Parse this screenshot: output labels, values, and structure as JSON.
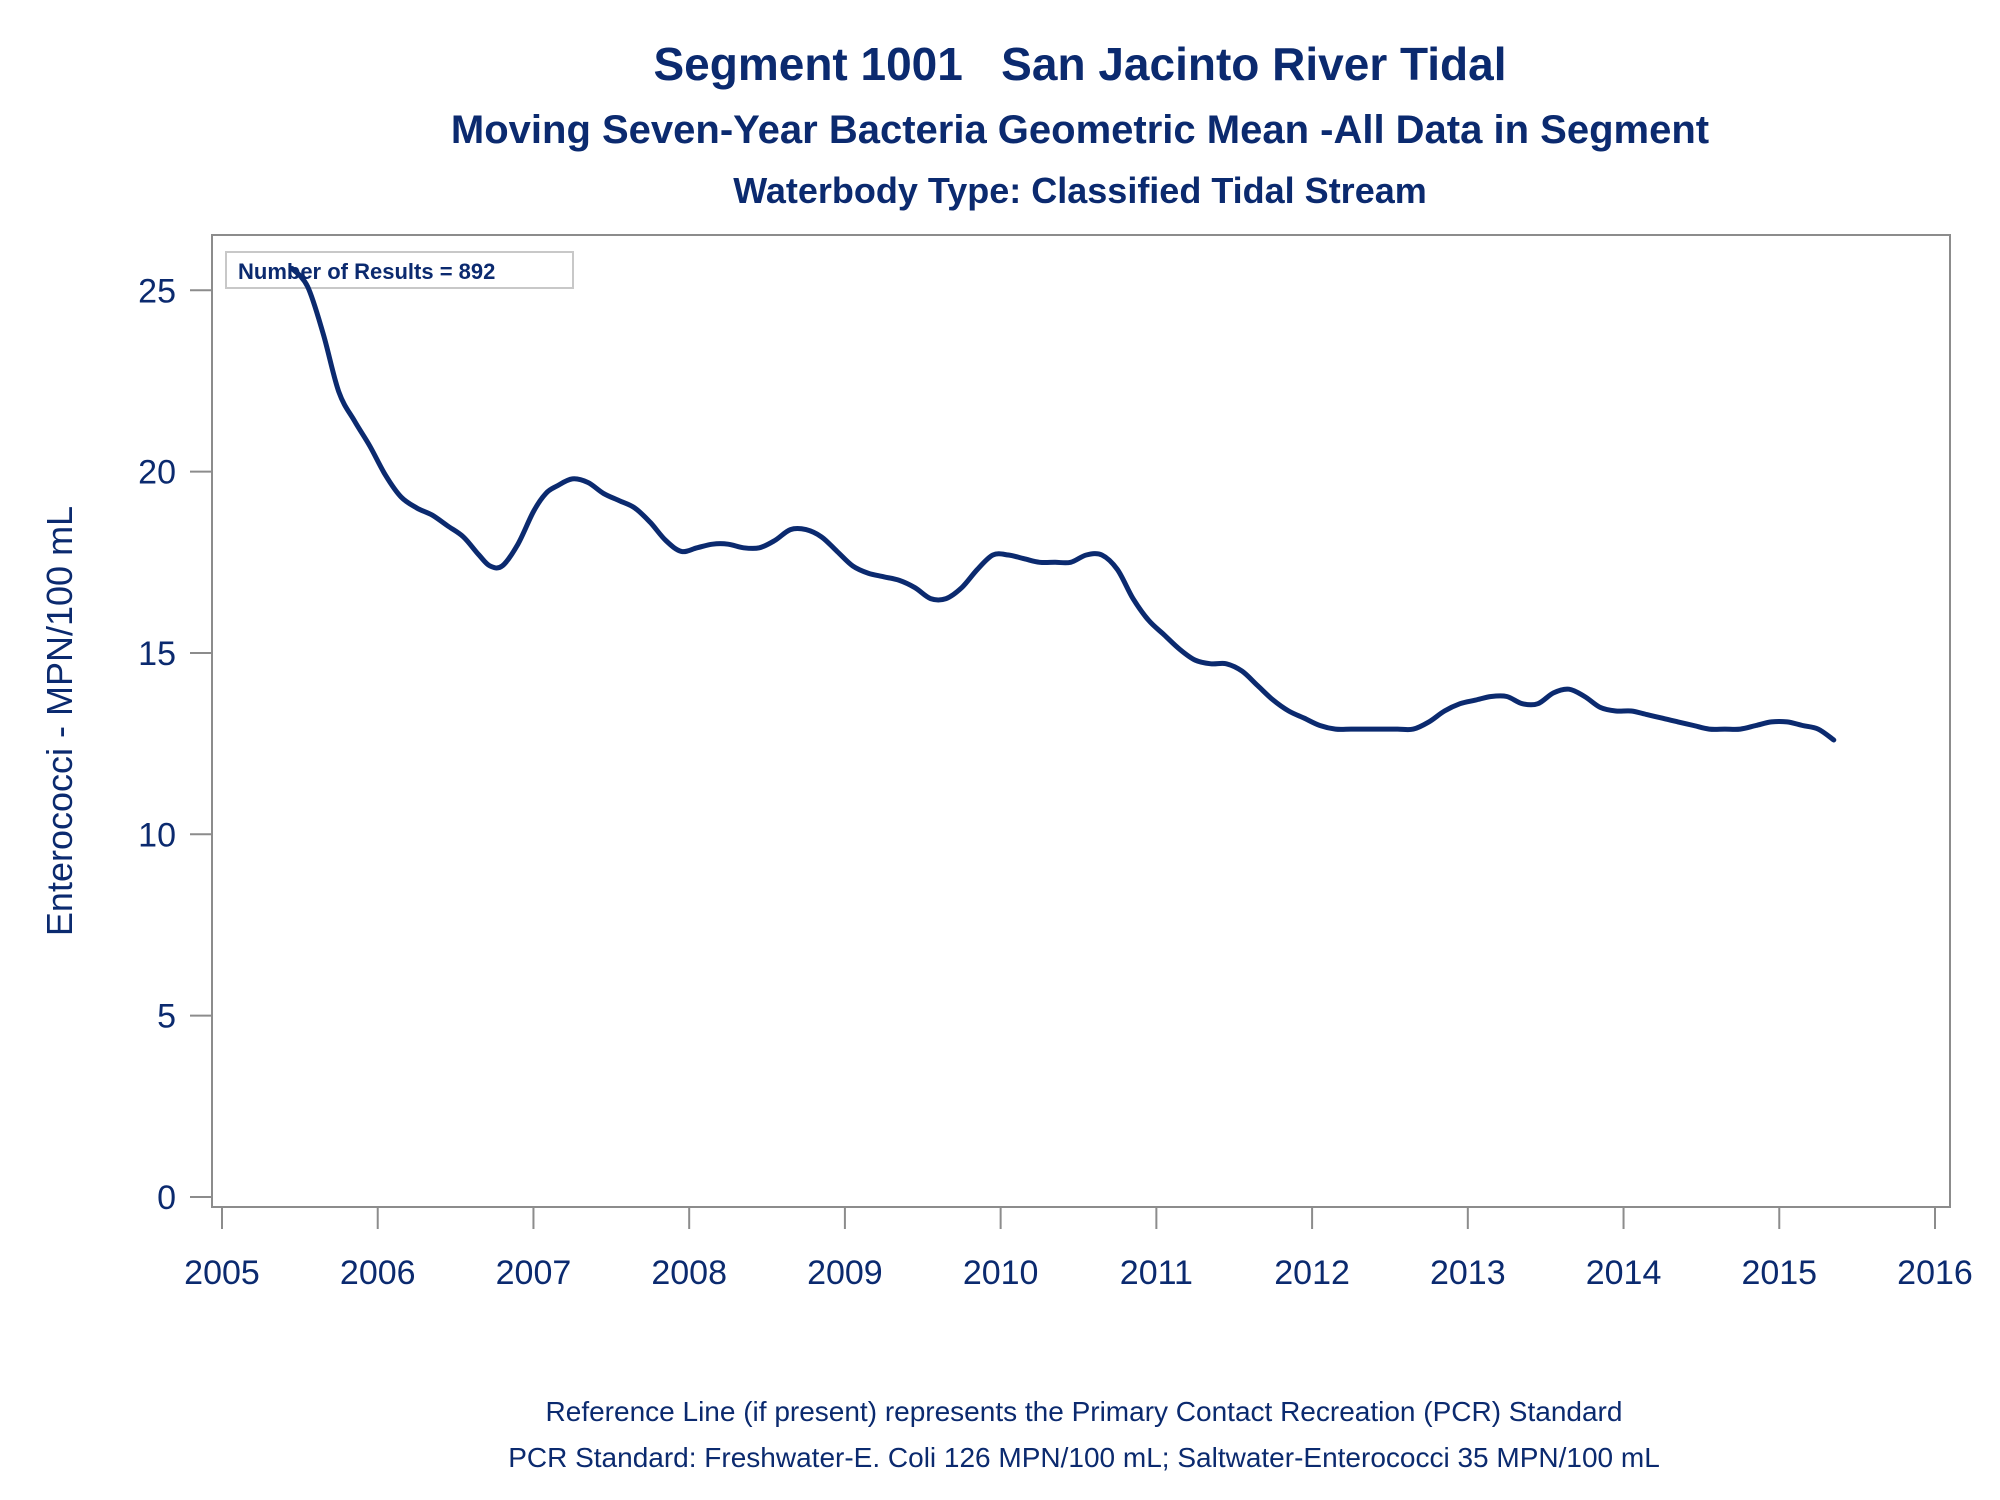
{
  "colors": {
    "text": "#0b2a6f",
    "line": "#0b2a6f",
    "axis": "#8c8c8c",
    "background": "#ffffff"
  },
  "title": "Segment 1001   San Jacinto River Tidal",
  "subtitle": "Moving Seven-Year Bacteria Geometric Mean -All Data in Segment",
  "subtitle2": "Waterbody Type: Classified Tidal Stream",
  "annotation": "Number of Results = 892",
  "footnotes": [
    "Reference Line (if present) represents the Primary Contact Recreation (PCR) Standard",
    "PCR Standard: Freshwater-E. Coli 126 MPN/100 mL; Saltwater-Enterococci 35 MPN/100 mL"
  ],
  "chart_data": {
    "type": "line",
    "title": "Segment 1001   San Jacinto River Tidal",
    "ylabel": "Enterococci - MPN/100 mL",
    "xlabel": "",
    "xlim": [
      2005,
      2016
    ],
    "ylim": [
      0,
      26
    ],
    "x_ticks": [
      "2005",
      "2006",
      "2007",
      "2008",
      "2009",
      "2010",
      "2011",
      "2012",
      "2013",
      "2014",
      "2015",
      "2016"
    ],
    "y_ticks": [
      "0",
      "5",
      "10",
      "15",
      "20",
      "25"
    ],
    "grid": false,
    "series": [
      {
        "x": [
          2005.45,
          2005.55,
          2005.65,
          2005.75,
          2005.85,
          2005.95,
          2006.05,
          2006.15,
          2006.25,
          2006.35,
          2006.45,
          2006.55,
          2006.65,
          2006.72,
          2006.8,
          2006.9,
          2007.0,
          2007.08,
          2007.15,
          2007.25,
          2007.35,
          2007.45,
          2007.55,
          2007.65,
          2007.75,
          2007.85,
          2007.95,
          2008.05,
          2008.15,
          2008.25,
          2008.35,
          2008.45,
          2008.55,
          2008.65,
          2008.75,
          2008.85,
          2008.95,
          2009.05,
          2009.15,
          2009.25,
          2009.35,
          2009.45,
          2009.55,
          2009.65,
          2009.75,
          2009.85,
          2009.95,
          2010.05,
          2010.15,
          2010.25,
          2010.35,
          2010.45,
          2010.55,
          2010.65,
          2010.75,
          2010.85,
          2010.95,
          2011.05,
          2011.15,
          2011.25,
          2011.35,
          2011.45,
          2011.55,
          2011.65,
          2011.75,
          2011.85,
          2011.95,
          2012.05,
          2012.15,
          2012.25,
          2012.35,
          2012.45,
          2012.55,
          2012.65,
          2012.75,
          2012.85,
          2012.95,
          2013.05,
          2013.15,
          2013.25,
          2013.35,
          2013.45,
          2013.55,
          2013.65,
          2013.75,
          2013.85,
          2013.95,
          2014.05,
          2014.15,
          2014.25,
          2014.35,
          2014.45,
          2014.55,
          2014.65,
          2014.75,
          2014.85,
          2014.95,
          2015.05,
          2015.15,
          2015.25,
          2015.35
        ],
        "y": [
          25.6,
          25.1,
          23.8,
          22.2,
          21.4,
          20.7,
          19.9,
          19.3,
          19.0,
          18.8,
          18.5,
          18.2,
          17.7,
          17.4,
          17.4,
          18.0,
          18.9,
          19.4,
          19.6,
          19.8,
          19.7,
          19.4,
          19.2,
          19.0,
          18.6,
          18.1,
          17.8,
          17.9,
          18.0,
          18.0,
          17.9,
          17.9,
          18.1,
          18.4,
          18.4,
          18.2,
          17.8,
          17.4,
          17.2,
          17.1,
          17.0,
          16.8,
          16.5,
          16.5,
          16.8,
          17.3,
          17.7,
          17.7,
          17.6,
          17.5,
          17.5,
          17.5,
          17.7,
          17.7,
          17.3,
          16.5,
          15.9,
          15.5,
          15.1,
          14.8,
          14.7,
          14.7,
          14.5,
          14.1,
          13.7,
          13.4,
          13.2,
          13.0,
          12.9,
          12.9,
          12.9,
          12.9,
          12.9,
          12.9,
          13.1,
          13.4,
          13.6,
          13.7,
          13.8,
          13.8,
          13.6,
          13.6,
          13.9,
          14.0,
          13.8,
          13.5,
          13.4,
          13.4,
          13.3,
          13.2,
          13.1,
          13.0,
          12.9,
          12.9,
          12.9,
          13.0,
          13.1,
          13.1,
          13.0,
          12.9,
          12.6
        ]
      }
    ]
  }
}
